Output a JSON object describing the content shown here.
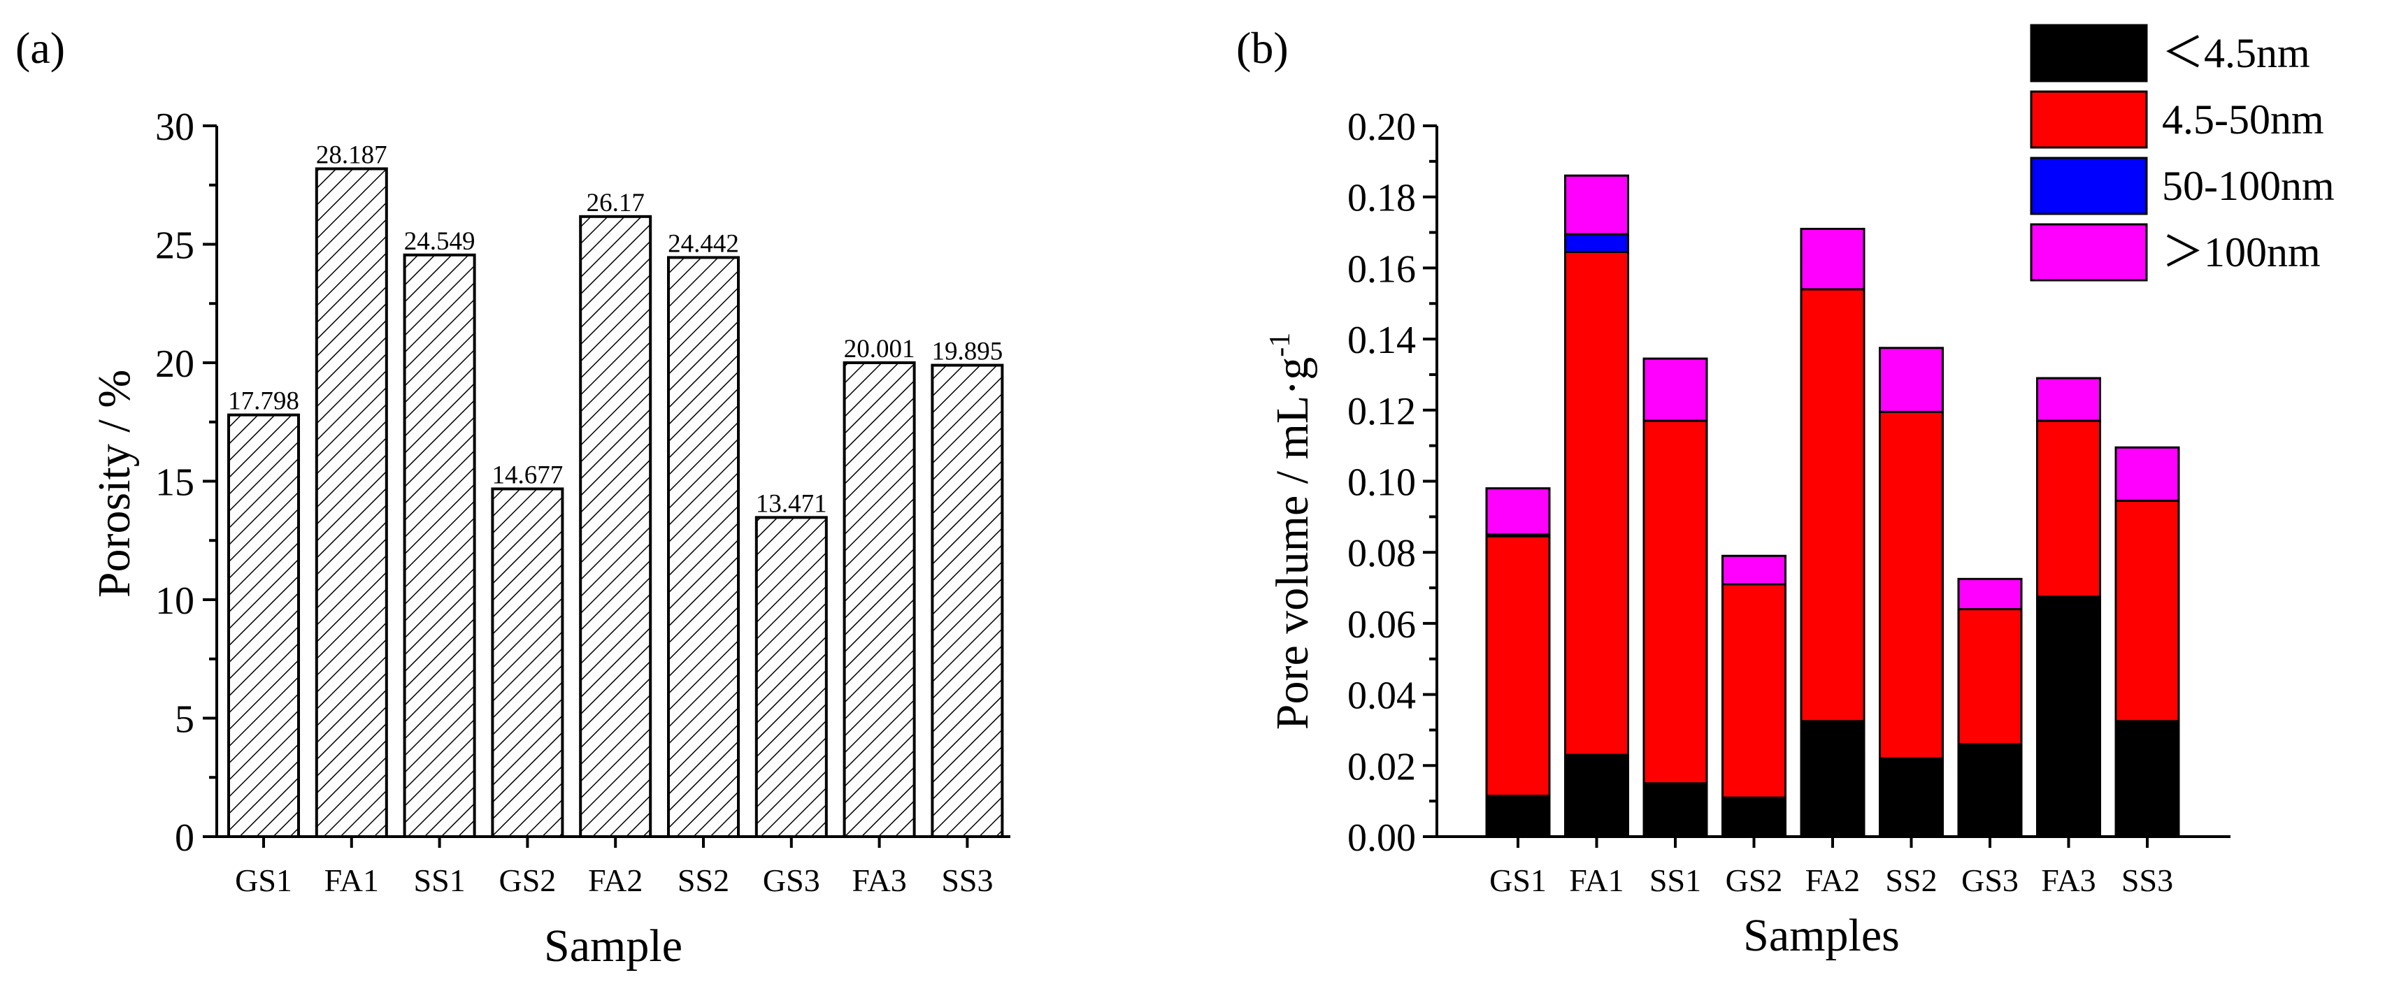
{
  "chart_data": [
    {
      "panel_label": "(a)",
      "type": "bar",
      "pattern": "diagonal-hatch",
      "categories": [
        "GS1",
        "FA1",
        "SS1",
        "GS2",
        "FA2",
        "SS2",
        "GS3",
        "FA3",
        "SS3"
      ],
      "values": [
        17.798,
        28.187,
        24.549,
        14.677,
        26.17,
        24.442,
        13.471,
        20.001,
        19.895
      ],
      "value_labels": [
        "17.798",
        "28.187",
        "24.549",
        "14.677",
        "26.17",
        "24.442",
        "13.471",
        "20.001",
        "19.895"
      ],
      "xlabel": "Sample",
      "ylabel": "Porosity / %",
      "ylim": [
        0,
        30
      ],
      "yticks": [
        0,
        5,
        10,
        15,
        20,
        25,
        30
      ],
      "ytick_labels": [
        "0",
        "5",
        "10",
        "15",
        "20",
        "25",
        "30"
      ],
      "grid": false
    },
    {
      "panel_label": "(b)",
      "type": "bar",
      "stacked": true,
      "categories": [
        "GS1",
        "FA1",
        "SS1",
        "GS2",
        "FA2",
        "SS2",
        "GS3",
        "FA3",
        "SS3"
      ],
      "series": [
        {
          "name": "＜4.5nm",
          "color": "#000000",
          "values": [
            0.0115,
            0.023,
            0.015,
            0.011,
            0.0325,
            0.022,
            0.026,
            0.0675,
            0.0325
          ]
        },
        {
          "name": "4.5-50nm",
          "color": "#ff0000",
          "values": [
            0.073,
            0.1415,
            0.102,
            0.06,
            0.1215,
            0.0975,
            0.038,
            0.0495,
            0.062
          ]
        },
        {
          "name": "50-100nm",
          "color": "#0000ff",
          "values": [
            0.0005,
            0.005,
            0.0,
            0.0,
            0.0,
            0.0,
            0.0,
            0.0,
            0.0
          ]
        },
        {
          "name": "＞100nm",
          "color": "#ff00ff",
          "values": [
            0.013,
            0.0165,
            0.0175,
            0.008,
            0.017,
            0.018,
            0.0085,
            0.012,
            0.015
          ]
        }
      ],
      "xlabel": "Samples",
      "ylabel_main": "Pore volume / mL·g",
      "ylabel_sup": "-1",
      "ylim": [
        0,
        0.2
      ],
      "yticks": [
        0,
        0.02,
        0.04,
        0.06,
        0.08,
        0.1,
        0.12,
        0.14,
        0.16,
        0.18,
        0.2
      ],
      "ytick_labels": [
        "0.00",
        "0.02",
        "0.04",
        "0.06",
        "0.08",
        "0.10",
        "0.12",
        "0.14",
        "0.16",
        "0.18",
        "0.20"
      ],
      "legend_position": "top-right",
      "grid": false
    }
  ]
}
